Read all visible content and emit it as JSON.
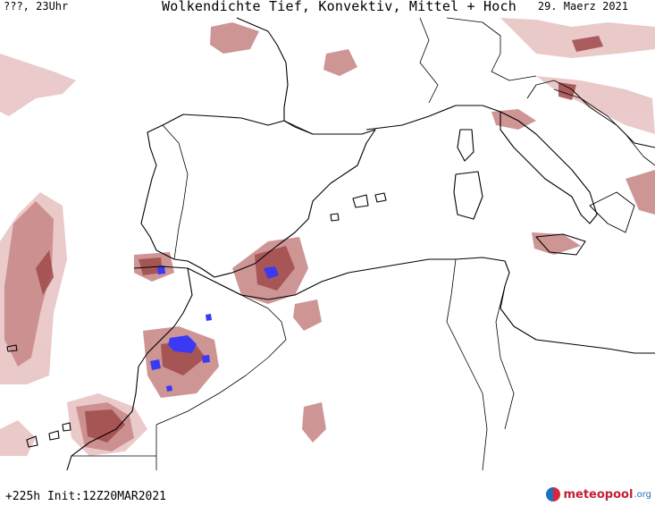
{
  "header": {
    "left_label": "???, 23Uhr",
    "title": "Wolkendichte  Tief, Konvektiv, Mittel + Hoch",
    "date": "29. Maerz 2021"
  },
  "footer": {
    "run_info": "+225h Init:12Z20MAR2021"
  },
  "logo": {
    "name": "meteopool",
    "suffix": ".org"
  },
  "legend_colors": {
    "cloud_light": "#e8c4c4",
    "cloud_mid": "#c98a8a",
    "cloud_dense": "#a04a4a",
    "convective": "#3a3af5",
    "coastline": "#000000"
  }
}
